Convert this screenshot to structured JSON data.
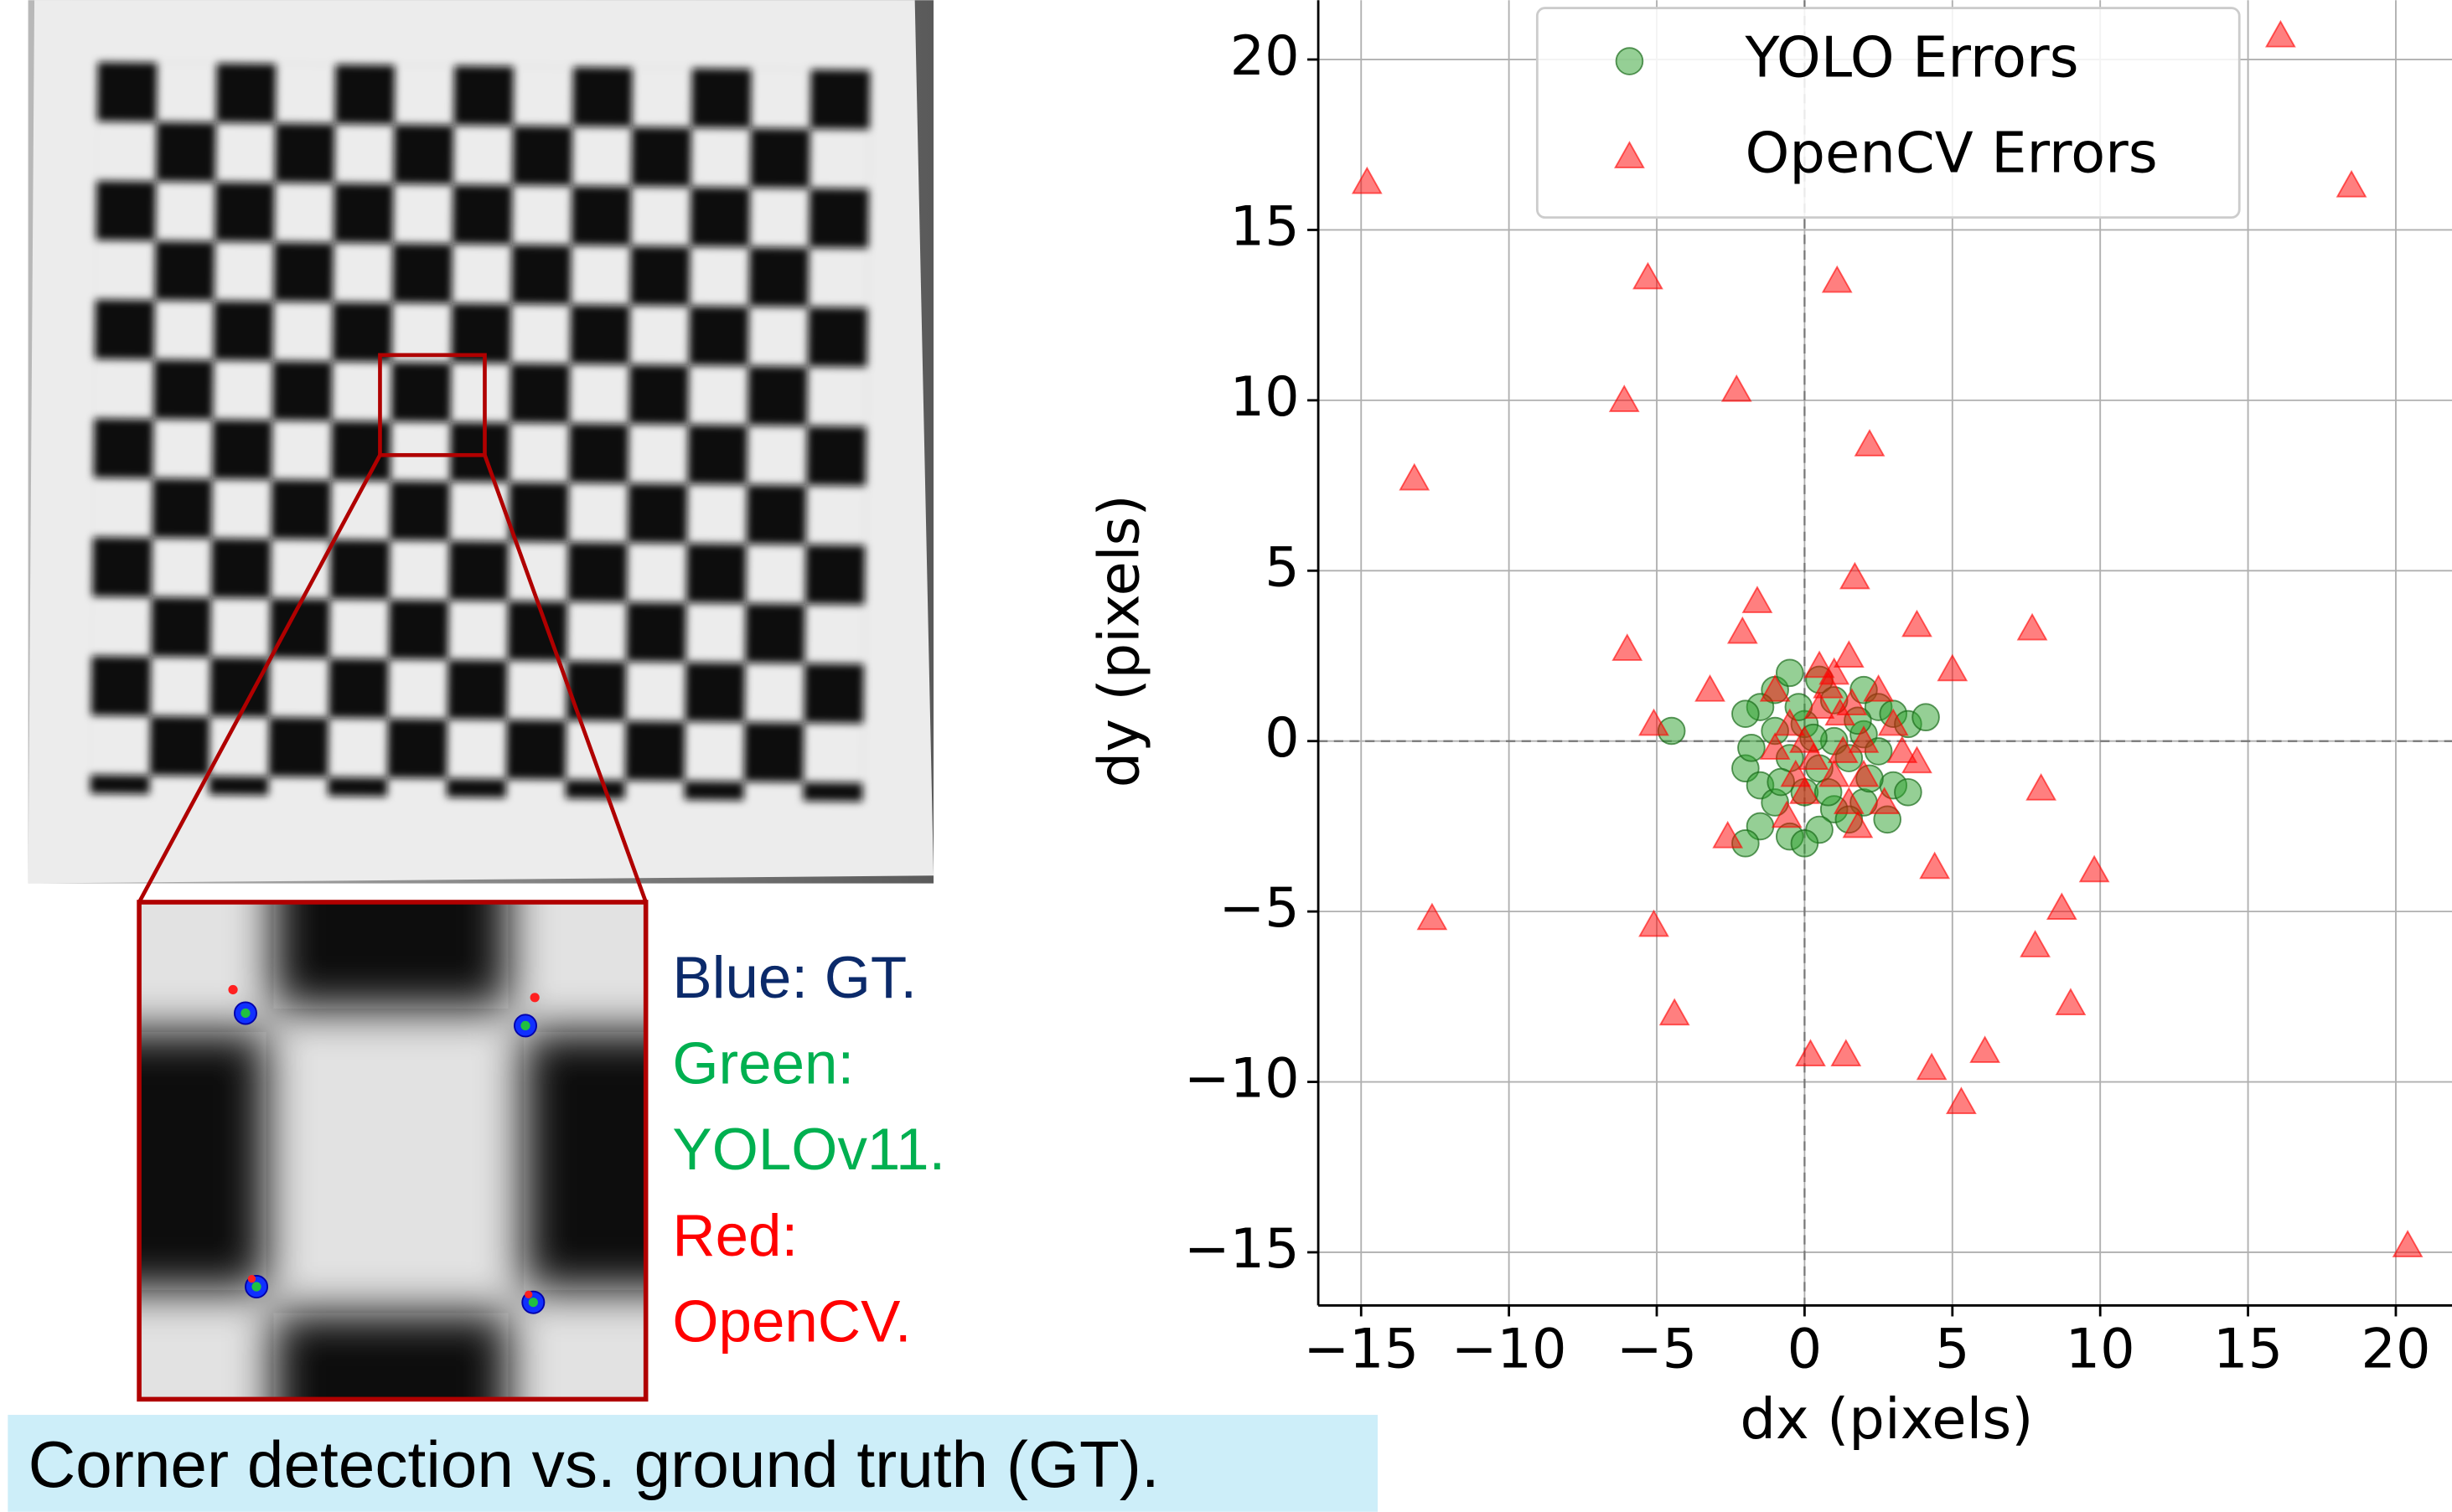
{
  "panel": {
    "key": [
      "Blue: GT.",
      "Green:",
      "YOLOv11.",
      "Red:",
      "OpenCV."
    ],
    "caption": "Corner detection vs. ground truth (GT)."
  },
  "chart_data": {
    "type": "scatter",
    "xlabel": "dx (pixels)",
    "ylabel": "dy (pixels)",
    "xlim": [
      -16.45,
      21.9
    ],
    "ylim": [
      -16.56,
      21.74
    ],
    "xticks": [
      {
        "value": -15,
        "label": "−15"
      },
      {
        "value": -10,
        "label": "−10"
      },
      {
        "value": -5,
        "label": "−5"
      },
      0,
      5,
      10,
      15,
      20
    ],
    "yticks": [
      {
        "value": -15,
        "label": "−15"
      },
      {
        "value": -10,
        "label": "−10"
      },
      {
        "value": -5,
        "label": "−5"
      },
      0,
      5,
      10,
      15,
      20
    ],
    "grid": true,
    "legend": "upper right",
    "series": [
      {
        "name": "YOLO Errors",
        "color": "#2ca02c",
        "marker": "circle",
        "x": [
          -1,
          -0.5,
          0.5,
          1,
          -1.5,
          -2,
          2,
          2.5,
          3,
          3.5,
          4.1,
          -4.5,
          -1,
          0,
          1,
          2,
          -0.5,
          0.5,
          1.5,
          2.5,
          3,
          -2,
          -1.5,
          -1,
          0,
          1,
          2,
          2.8,
          -1.5,
          -0.5,
          0.5,
          1.5,
          -2,
          0,
          3.5,
          -0.8,
          0.3,
          1.8,
          -1.8,
          2.2,
          0.8,
          -0.2
        ],
        "y": [
          1.5,
          2,
          1.8,
          1.2,
          1,
          0.8,
          1.5,
          1,
          0.8,
          0.5,
          0.7,
          0.3,
          0.3,
          0.5,
          0,
          0.2,
          -0.5,
          -0.8,
          -0.5,
          -0.3,
          -1.3,
          -0.8,
          -1.3,
          -1.8,
          -1.5,
          -2,
          -1.8,
          -2.3,
          -2.5,
          -2.8,
          -2.6,
          -2.3,
          -3,
          -3,
          -1.5,
          -1.2,
          0.1,
          0.6,
          -0.2,
          -1.1,
          -1.5,
          1
        ]
      },
      {
        "name": "OpenCV Errors",
        "color": "#ff0000",
        "marker": "triangle",
        "x": [
          16.1,
          -14.8,
          18.5,
          -5.3,
          1.1,
          -6.1,
          -2.3,
          2.2,
          -13.2,
          1.7,
          -1.6,
          -6,
          -2.1,
          7.7,
          3.8,
          5,
          -5.1,
          -3.2,
          8,
          3.8,
          -2.6,
          4.4,
          9.8,
          8.7,
          7.8,
          -12.6,
          -5.1,
          9,
          -4.4,
          0.2,
          1.4,
          4.3,
          6.1,
          5.3,
          20.4,
          0,
          0.5,
          1,
          1.5,
          -0.5,
          2,
          1,
          0,
          1.5,
          2.5,
          3,
          -1,
          0.3,
          1.2,
          2,
          -0.3,
          0.8,
          1.8,
          3.3,
          -1,
          0.5,
          1.3,
          2.7,
          -0.6,
          1.6
        ],
        "y": [
          20.7,
          16.4,
          16.3,
          13.6,
          13.5,
          10,
          10.3,
          8.7,
          7.7,
          4.8,
          4.1,
          2.7,
          3.2,
          3.3,
          3.4,
          2.1,
          0.5,
          1.5,
          -1.4,
          -0.6,
          -2.8,
          -3.7,
          -3.8,
          -4.9,
          -6,
          -5.2,
          -5.4,
          -7.7,
          -8,
          -9.2,
          -9.2,
          -9.6,
          -9.1,
          -10.6,
          -14.8,
          0,
          1,
          2,
          2.5,
          0.5,
          0,
          -1,
          -1.5,
          -1.8,
          1.5,
          0.5,
          1.5,
          -0.5,
          0.8,
          -1,
          -1,
          1.6,
          -2.5,
          -0.3,
          -0.2,
          2.2,
          -0.3,
          -1.8,
          -2.2,
          1.1
        ]
      }
    ]
  }
}
